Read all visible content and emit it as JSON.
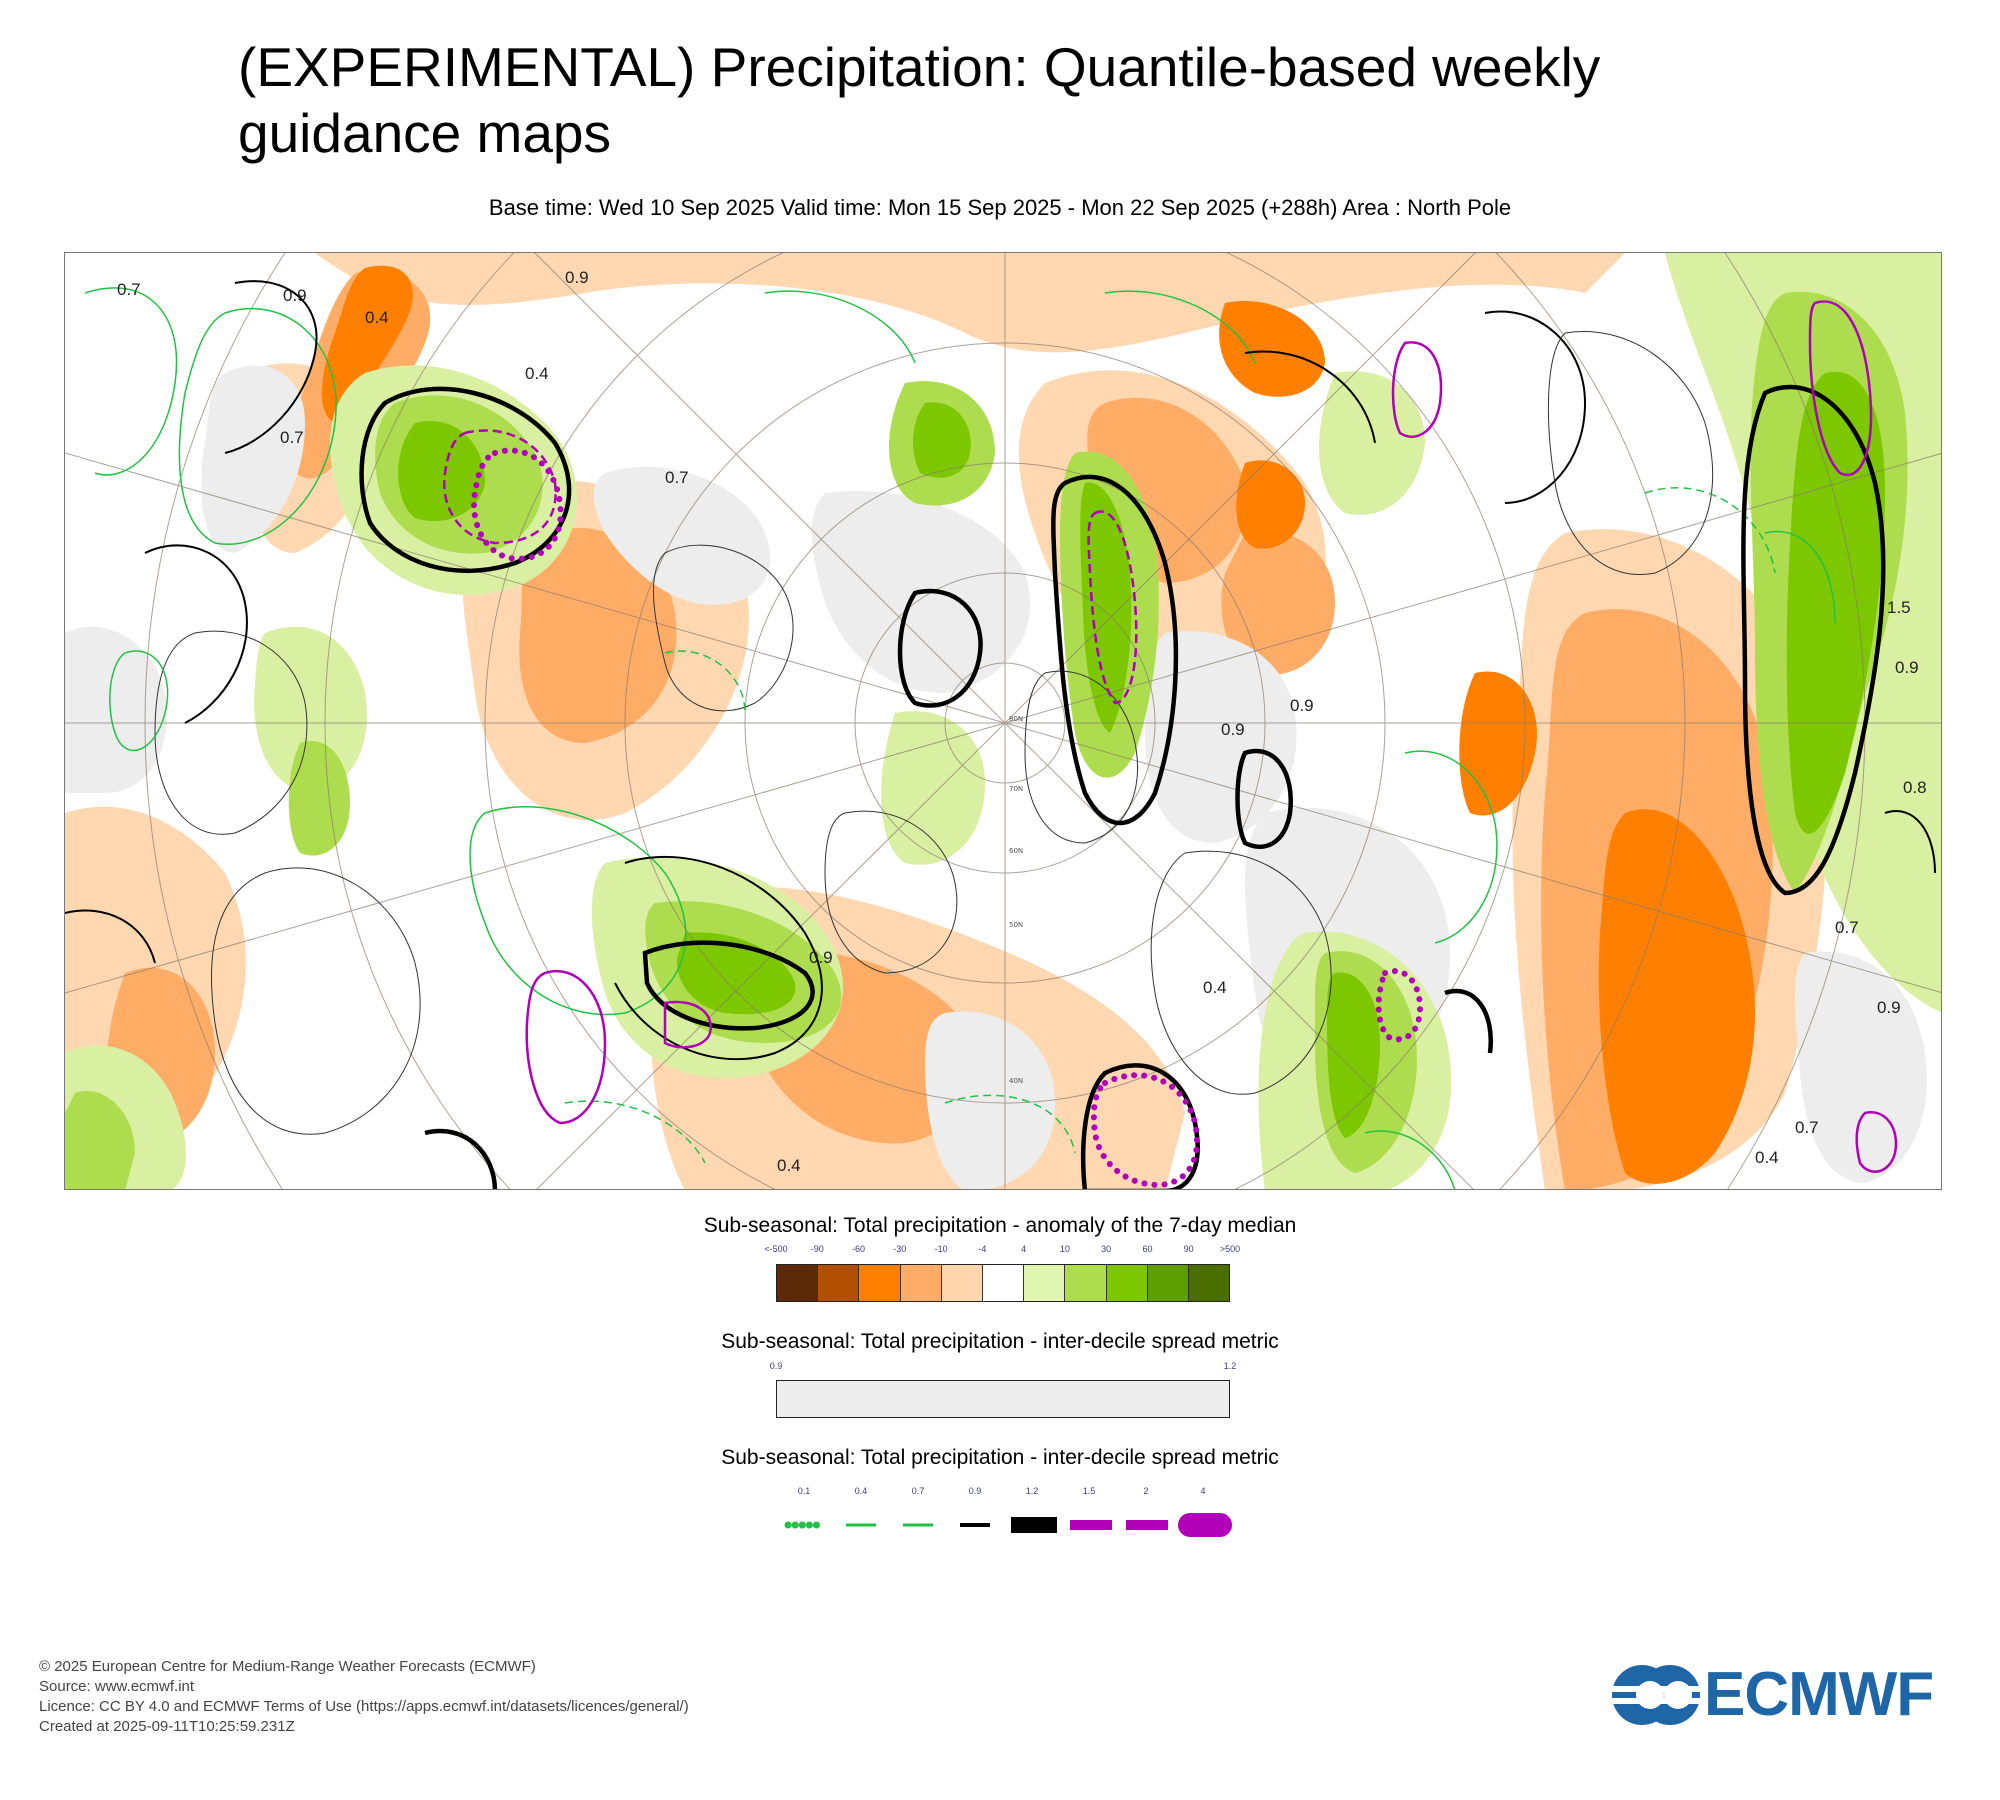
{
  "header": {
    "title_line1": "(EXPERIMENTAL) Precipitation: Quantile-based weekly",
    "title_line2": "guidance maps",
    "subtitle": "Base time: Wed 10 Sep 2025 Valid time: Mon 15 Sep 2025 - Mon 22 Sep 2025 (+288h) Area : North Pole"
  },
  "map": {
    "projection": "north-polar-stereographic",
    "latitude_labels": [
      "80N",
      "70N",
      "60N",
      "50N",
      "40N"
    ],
    "contour_labels": [
      "0.7",
      "0.9",
      "0.4",
      "0.7",
      "0.9",
      "0.4",
      "0.9",
      "0.7",
      "0.9",
      "0.8",
      "1.5",
      "0.9",
      "0.7",
      "0.4",
      "0.4",
      "0.7",
      "0.4",
      "0.9",
      "0.9"
    ],
    "colors": {
      "strong_dry": "#ff8000",
      "dry": "#ffad66",
      "slight_dry": "#ffd6ad",
      "neutral": "#ffffff",
      "slight_wet": "#d9f0a3",
      "wet": "#addd4e",
      "strong_wet": "#7cc700",
      "spread": "#ededed",
      "contour_green": "#22c044",
      "contour_black": "#000000",
      "contour_magenta": "#b000b8"
    }
  },
  "legend_anomaly": {
    "title": "Sub-seasonal: Total precipitation - anomaly of the 7-day median",
    "ticks": [
      "<-500",
      "-90",
      "-60",
      "-30",
      "-10",
      "-4",
      "4",
      "10",
      "30",
      "60",
      "90",
      ">500"
    ],
    "colors": [
      "#5c2a08",
      "#b04f00",
      "#ff8000",
      "#ffad66",
      "#ffd6ad",
      "#ffffff",
      "#e0f5b0",
      "#addd4e",
      "#7cc700",
      "#5f9e00",
      "#4a6e00"
    ]
  },
  "legend_spread": {
    "title": "Sub-seasonal: Total precipitation - inter-decile spread metric",
    "ticks": [
      "0.9",
      "1.2"
    ],
    "color": "#ededed"
  },
  "legend_contours": {
    "title": "Sub-seasonal: Total precipitation - inter-decile spread metric",
    "ticks": [
      "0.1",
      "0.4",
      "0.7",
      "0.9",
      "1.2",
      "1.5",
      "2",
      "4"
    ],
    "styles": [
      {
        "color": "#22c044",
        "style": "dotted"
      },
      {
        "color": "#22c044",
        "style": "dashed"
      },
      {
        "color": "#22c044",
        "style": "solid"
      },
      {
        "color": "#000000",
        "style": "solid"
      },
      {
        "color": "#000000",
        "style": "thick"
      },
      {
        "color": "#b000b8",
        "style": "dashed"
      },
      {
        "color": "#b000b8",
        "style": "solid"
      },
      {
        "color": "#b000b8",
        "style": "dotted-thick"
      }
    ]
  },
  "footer": {
    "copyright": "© 2025 European Centre for Medium-Range Weather Forecasts (ECMWF)",
    "source": "Source: www.ecmwf.int",
    "licence": "Licence: CC BY 4.0 and ECMWF Terms of Use (https://apps.ecmwf.int/datasets/licences/general/)",
    "created": "Created at 2025-09-11T10:25:59.231Z"
  },
  "logo": {
    "text": "ECMWF",
    "color": "#1f66a6"
  }
}
